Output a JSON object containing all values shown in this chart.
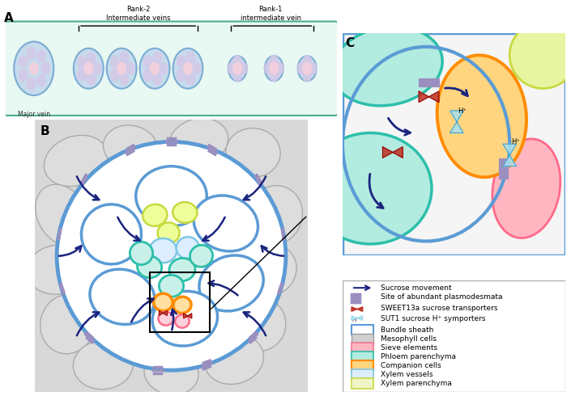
{
  "panel_A_label": "A",
  "panel_B_label": "B",
  "panel_C_label": "C",
  "major_vein_label": "Major vein",
  "rank2_label": "Rank-2\nIntermediate veins",
  "rank1_label": "Rank-1\nintermediate vein",
  "sucrose_movement": "Sucrose movement",
  "plasmodesmata": "Site of abundant plasmodesmata",
  "sweet13a": "SWEET13a sucrose transporters",
  "sut1": "SUT1 sucrose H⁺ symporters",
  "legend_items": [
    {
      "label": "Bundle sheath",
      "facecolor": "#FFFFFF",
      "edgecolor": "#5B9BD5",
      "lw": 2.5
    },
    {
      "label": "Mesophyll cells",
      "facecolor": "#D0D0D0",
      "edgecolor": "#999999",
      "lw": 1.5
    },
    {
      "label": "Sieve elements",
      "facecolor": "#FFB6C1",
      "edgecolor": "#FF6B8A",
      "lw": 1.8
    },
    {
      "label": "Phloem parenchyma",
      "facecolor": "#B2EBE0",
      "edgecolor": "#2DBFAA",
      "lw": 2.0
    },
    {
      "label": "Companion cells",
      "facecolor": "#FFD580",
      "edgecolor": "#FF8C00",
      "lw": 2.5
    },
    {
      "label": "Xylem vessels",
      "facecolor": "#DDEEFF",
      "edgecolor": "#7EC8E3",
      "lw": 2.0
    },
    {
      "label": "Xylem parenchyma",
      "facecolor": "#F0F5C8",
      "edgecolor": "#C8D940",
      "lw": 2.0
    }
  ],
  "arrow_color": "#1A237E",
  "bundle_sheath_color": "#5B9BD5",
  "mesophyll_color": "#999999",
  "sieve_color": "#FF6B8A",
  "phloem_color": "#2DBFAA",
  "companion_color": "#FF8C00",
  "xylem_vessel_color": "#7EC8E3",
  "xylem_parenchyma_color": "#C8D940",
  "plasmodesmata_color": "#9B8FBF",
  "sweet_color": "#C0392B",
  "sut1_color": "#7EC8E3",
  "bg_color": "#F8F8F8"
}
